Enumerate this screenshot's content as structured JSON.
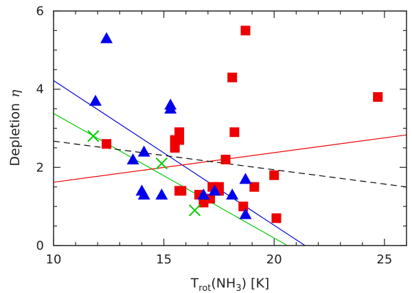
{
  "chart_data": {
    "type": "scatter",
    "title": "",
    "xlabel": {
      "main": "T",
      "sub": "rot",
      "rest_before_sub3": "(NH",
      "sub3": "3",
      "rest_after": ")  [K]"
    },
    "ylabel": {
      "text": "Depletion",
      "symbol": "η"
    },
    "xlim": [
      10,
      26
    ],
    "ylim": [
      0,
      6
    ],
    "x_ticks": [
      10,
      15,
      20,
      25
    ],
    "y_ticks": [
      0,
      2,
      4,
      6
    ],
    "x_tick_labels": [
      "10",
      "15",
      "20",
      "25"
    ],
    "y_tick_labels": [
      "0",
      "2",
      "4",
      "6"
    ],
    "series": [
      {
        "name": "squares",
        "marker": "square",
        "color": "#ee0000",
        "points": [
          [
            12.4,
            2.6
          ],
          [
            15.5,
            2.5
          ],
          [
            15.5,
            2.7
          ],
          [
            15.7,
            2.7
          ],
          [
            15.7,
            2.9
          ],
          [
            15.8,
            1.4
          ],
          [
            15.7,
            1.4
          ],
          [
            16.6,
            1.3
          ],
          [
            16.8,
            1.1
          ],
          [
            17.1,
            1.2
          ],
          [
            17.2,
            1.5
          ],
          [
            17.5,
            1.5
          ],
          [
            17.5,
            1.4
          ],
          [
            17.8,
            2.2
          ],
          [
            18.1,
            4.3
          ],
          [
            18.2,
            2.9
          ],
          [
            18.7,
            5.5
          ],
          [
            18.6,
            1.0
          ],
          [
            19.1,
            1.5
          ],
          [
            20.0,
            1.8
          ],
          [
            20.1,
            0.7
          ],
          [
            24.7,
            3.8
          ]
        ]
      },
      {
        "name": "triangles",
        "marker": "triangle",
        "color": "#0000ee",
        "points": [
          [
            11.9,
            3.7
          ],
          [
            12.4,
            5.3
          ],
          [
            13.6,
            2.2
          ],
          [
            14.0,
            1.4
          ],
          [
            14.1,
            2.4
          ],
          [
            14.1,
            1.3
          ],
          [
            14.9,
            1.3
          ],
          [
            15.3,
            3.6
          ],
          [
            15.3,
            3.5
          ],
          [
            16.8,
            1.3
          ],
          [
            17.3,
            1.4
          ],
          [
            18.1,
            1.3
          ],
          [
            18.7,
            1.7
          ],
          [
            18.7,
            0.8
          ]
        ]
      },
      {
        "name": "crosses",
        "marker": "x",
        "color": "#00cc00",
        "points": [
          [
            11.8,
            2.8
          ],
          [
            14.9,
            2.1
          ],
          [
            16.4,
            0.9
          ]
        ]
      }
    ],
    "lines": [
      {
        "name": "blue-fit",
        "color": "#0000cc",
        "style": "solid",
        "x": [
          10,
          21.4
        ],
        "y": [
          4.22,
          0
        ]
      },
      {
        "name": "green-fit",
        "color": "#00cc00",
        "style": "solid",
        "x": [
          10,
          20.6
        ],
        "y": [
          3.38,
          0
        ]
      },
      {
        "name": "red-fit",
        "color": "#ee0000",
        "style": "solid",
        "x": [
          10,
          26
        ],
        "y": [
          1.62,
          2.83
        ]
      },
      {
        "name": "black-dashed-fit",
        "color": "#000000",
        "style": "dashed",
        "x": [
          10,
          26
        ],
        "y": [
          2.67,
          1.5
        ]
      }
    ]
  }
}
